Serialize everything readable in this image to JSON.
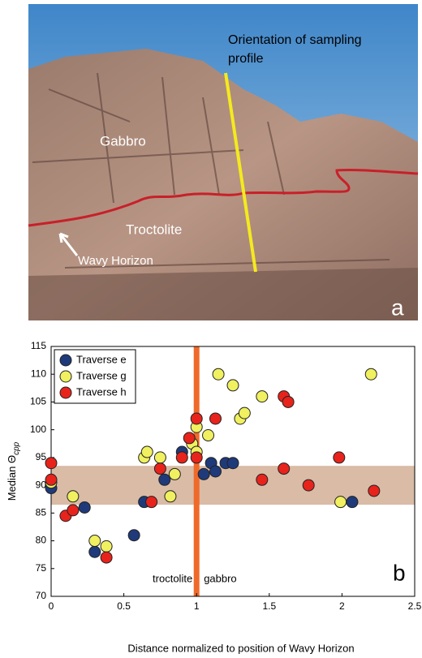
{
  "photo": {
    "label_top": "Orientation of sampling",
    "label_bottom": "profile",
    "gabbro": "Gabbro",
    "troctolite": "Troctolite",
    "horizon": "Wavy Horizon",
    "panel": "a"
  },
  "chart_data": {
    "type": "scatter",
    "panel": "b",
    "xlabel": "Distance normalized to position of Wavy Horizon",
    "ylabel": "Median Θ",
    "ylabel_subscript": "cpp",
    "xlim": [
      0,
      2.5
    ],
    "ylim": [
      70,
      115
    ],
    "xticks": [
      0,
      0.5,
      1,
      1.5,
      2,
      2.5
    ],
    "yticks": [
      70,
      75,
      80,
      85,
      90,
      95,
      100,
      105,
      110,
      115
    ],
    "band": [
      86.5,
      93.5
    ],
    "band_color": "#d9bba6",
    "vline": 1,
    "vline_color": "#ef6a2a",
    "vline_left_label": "troctolite",
    "vline_right_label": "gabbro",
    "legend": "upper left",
    "series": [
      {
        "name": "Traverse e",
        "color": "#1f3a7a",
        "x": [
          0,
          0.23,
          0.3,
          0.57,
          0.64,
          0.78,
          0.9,
          1.05,
          1.1,
          1.13,
          1.2,
          1.25,
          2.07
        ],
        "values": [
          89.5,
          86,
          78,
          81,
          87,
          91,
          96,
          92,
          94,
          92.5,
          94,
          94,
          87
        ]
      },
      {
        "name": "Traverse g",
        "color": "#f0f060",
        "x": [
          0,
          0.15,
          0.3,
          0.38,
          0.64,
          0.66,
          0.75,
          0.82,
          0.85,
          0.97,
          1.0,
          1.0,
          1.08,
          1.15,
          1.25,
          1.3,
          1.33,
          1.45,
          1.99,
          2.2
        ],
        "values": [
          90.5,
          88,
          80,
          79,
          95,
          96,
          95,
          88,
          92,
          97.5,
          100.5,
          96,
          99,
          110,
          108,
          102,
          103,
          106,
          87,
          110
        ]
      },
      {
        "name": "Traverse h",
        "color": "#e8231c",
        "x": [
          0,
          0,
          0.1,
          0.15,
          0.38,
          0.69,
          0.75,
          0.9,
          0.95,
          1.0,
          1.0,
          1.13,
          1.45,
          1.6,
          1.63,
          1.6,
          1.77,
          1.98,
          2.22
        ],
        "values": [
          94,
          91,
          84.5,
          85.5,
          77,
          87,
          93,
          95,
          98.5,
          102,
          95,
          102,
          91,
          106,
          105,
          93,
          90,
          95,
          89
        ]
      }
    ]
  }
}
